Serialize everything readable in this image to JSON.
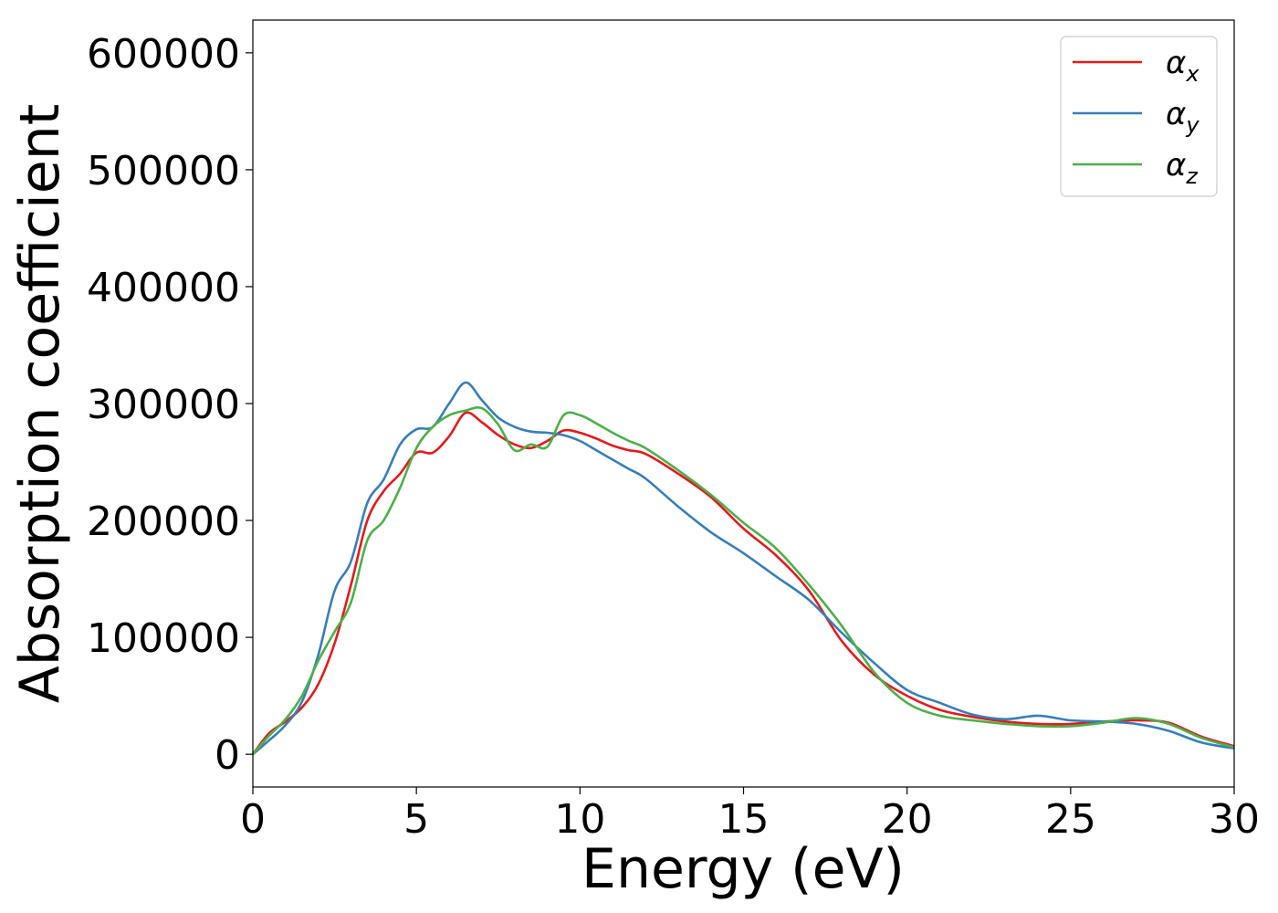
{
  "chart_data": {
    "type": "line",
    "xlabel": "Energy (eV)",
    "ylabel": "Absorption coefficient",
    "xlim": [
      0,
      30
    ],
    "ylim": [
      -28000,
      628000
    ],
    "xticks": [
      "0",
      "5",
      "10",
      "15",
      "20",
      "25",
      "30"
    ],
    "yticks": [
      "0",
      "100000",
      "200000",
      "300000",
      "400000",
      "500000",
      "600000"
    ],
    "grid": false,
    "legend_position": "top-right",
    "series": [
      {
        "name": "αx",
        "legend_base": "α",
        "legend_sub": "x",
        "color": "#e41a1c",
        "x": [
          0,
          0.5,
          1,
          1.5,
          2,
          2.5,
          3,
          3.5,
          4,
          4.5,
          5,
          5.5,
          6,
          6.5,
          7,
          7.5,
          8,
          8.5,
          9,
          9.5,
          10,
          10.5,
          11,
          11.5,
          12,
          13,
          14,
          15,
          16,
          17,
          18,
          19,
          20,
          21,
          22,
          23,
          24,
          25,
          26,
          27,
          28,
          29,
          30
        ],
        "y": [
          0,
          18000,
          28000,
          40000,
          60000,
          95000,
          145000,
          200000,
          225000,
          240000,
          258000,
          258000,
          272000,
          292000,
          284000,
          273000,
          265000,
          262000,
          268000,
          277000,
          275000,
          270000,
          264000,
          260000,
          257000,
          240000,
          220000,
          193000,
          170000,
          140000,
          97000,
          68000,
          50000,
          38000,
          32000,
          28000,
          26000,
          26000,
          28000,
          29000,
          27000,
          15000,
          7000
        ]
      },
      {
        "name": "αy",
        "legend_base": "α",
        "legend_sub": "y",
        "color": "#377eb8",
        "x": [
          0,
          0.5,
          1,
          1.5,
          2,
          2.5,
          3,
          3.5,
          4,
          4.5,
          5,
          5.5,
          6,
          6.5,
          7,
          7.5,
          8,
          8.5,
          9,
          9.5,
          10,
          10.5,
          11,
          11.5,
          12,
          13,
          14,
          15,
          16,
          17,
          18,
          19,
          20,
          21,
          22,
          23,
          24,
          25,
          26,
          27,
          28,
          29,
          30
        ],
        "y": [
          0,
          12000,
          25000,
          45000,
          85000,
          140000,
          165000,
          215000,
          235000,
          265000,
          278000,
          280000,
          300000,
          318000,
          303000,
          288000,
          280000,
          276000,
          275000,
          273000,
          268000,
          260000,
          252000,
          244000,
          236000,
          212000,
          190000,
          172000,
          152000,
          132000,
          104000,
          78000,
          55000,
          44000,
          34000,
          30000,
          33000,
          29000,
          28000,
          26000,
          20000,
          10000,
          5000
        ]
      },
      {
        "name": "αz",
        "legend_base": "α",
        "legend_sub": "z",
        "color": "#4daf4a",
        "x": [
          0,
          0.5,
          1,
          1.5,
          2,
          2.5,
          3,
          3.5,
          4,
          4.5,
          5,
          5.5,
          6,
          6.5,
          7,
          7.5,
          8,
          8.5,
          9,
          9.5,
          10,
          10.5,
          11,
          11.5,
          12,
          13,
          14,
          15,
          16,
          17,
          18,
          19,
          20,
          21,
          22,
          23,
          24,
          25,
          26,
          27,
          28,
          29,
          30
        ],
        "y": [
          0,
          16000,
          30000,
          50000,
          80000,
          105000,
          130000,
          183000,
          200000,
          228000,
          262000,
          280000,
          290000,
          294000,
          296000,
          282000,
          260000,
          265000,
          263000,
          290000,
          290000,
          283000,
          275000,
          268000,
          262000,
          243000,
          222000,
          198000,
          176000,
          145000,
          110000,
          70000,
          44000,
          33000,
          29000,
          26000,
          24000,
          24000,
          27000,
          31000,
          26000,
          14000,
          6000
        ]
      }
    ]
  }
}
